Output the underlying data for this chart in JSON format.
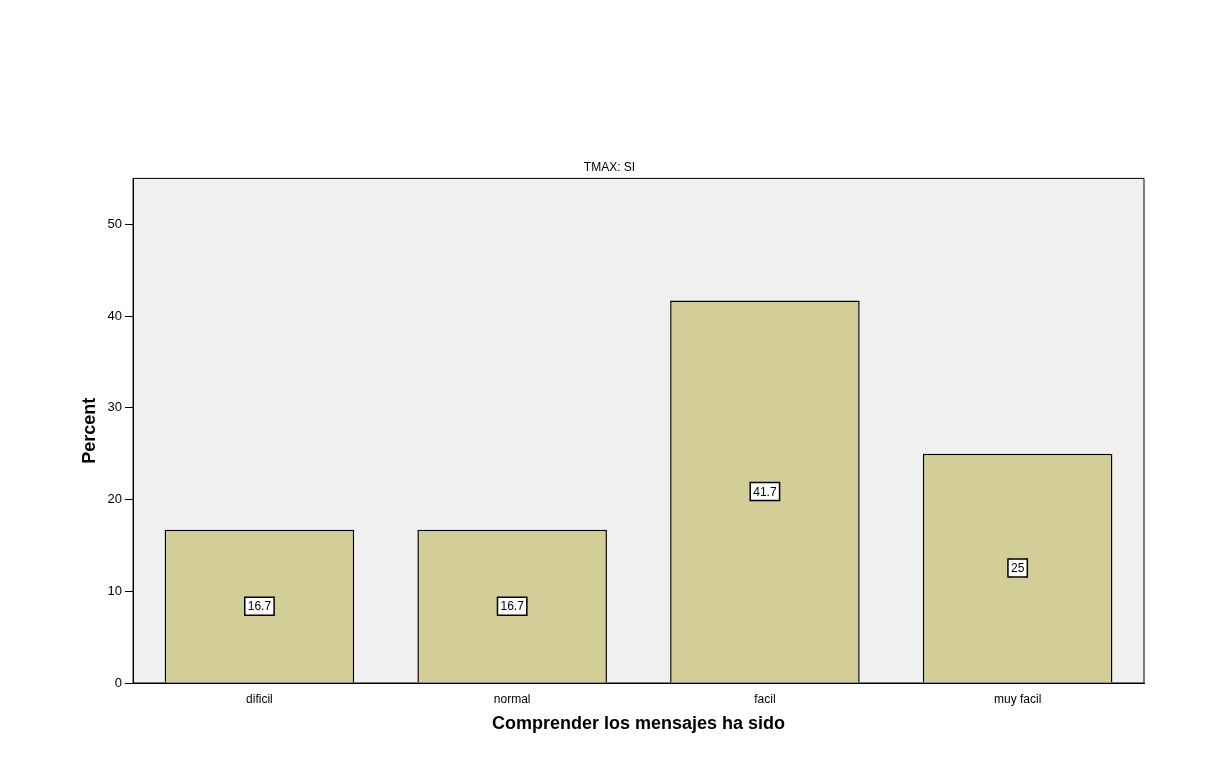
{
  "chart_data": {
    "type": "bar",
    "title": "TMAX: SI",
    "xlabel": "Comprender los mensajes ha sido",
    "ylabel": "Percent",
    "categories": [
      "dificil",
      "normal",
      "facil",
      "muy facil"
    ],
    "values": [
      16.7,
      16.7,
      41.7,
      25
    ],
    "color": "#d3cd98",
    "ylim": [
      0,
      55
    ],
    "yticks": [
      0,
      10,
      20,
      30,
      40,
      50
    ],
    "grid": false,
    "legend": false,
    "data_labels": true
  }
}
